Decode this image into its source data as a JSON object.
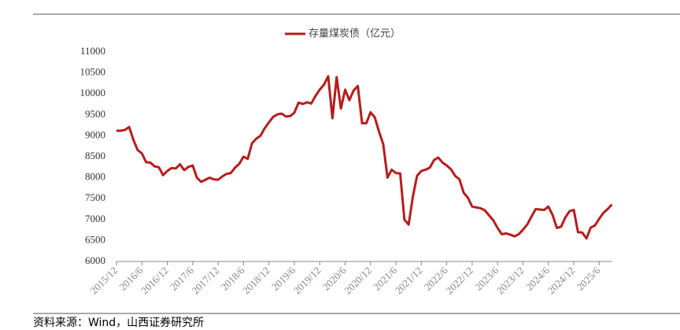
{
  "chart_data": {
    "type": "line",
    "series": [
      {
        "name": "存量煤炭债（亿元）",
        "color": "#b71c1c",
        "values": [
          9120,
          9120,
          9140,
          9210,
          8900,
          8660,
          8580,
          8370,
          8360,
          8270,
          8250,
          8060,
          8160,
          8230,
          8220,
          8320,
          8180,
          8260,
          8290,
          8000,
          7900,
          7950,
          8000,
          7960,
          7950,
          8030,
          8090,
          8110,
          8240,
          8330,
          8500,
          8450,
          8820,
          8930,
          9000,
          9180,
          9320,
          9450,
          9510,
          9530,
          9460,
          9470,
          9550,
          9790,
          9760,
          9800,
          9770,
          9950,
          10100,
          10220,
          10420,
          9420,
          10400,
          9650,
          10100,
          9850,
          10080,
          10190,
          9300,
          9300,
          9560,
          9440,
          9100,
          8800,
          8000,
          8190,
          8110,
          8100,
          7000,
          6880,
          7550,
          8050,
          8160,
          8190,
          8240,
          8420,
          8480,
          8360,
          8290,
          8200,
          8040,
          7960,
          7640,
          7520,
          7310,
          7290,
          7270,
          7220,
          7100,
          6980,
          6800,
          6650,
          6670,
          6640,
          6600,
          6650,
          6760,
          6880,
          7070,
          7250,
          7240,
          7230,
          7310,
          7110,
          6800,
          6830,
          7050,
          7200,
          7230,
          6700,
          6690,
          6550,
          6810,
          6860,
          7020,
          7160,
          7250,
          7360
        ]
      }
    ],
    "categories": [
      "2015/12",
      null,
      null,
      null,
      null,
      null,
      "2016/6",
      null,
      null,
      null,
      null,
      null,
      "2016/12",
      null,
      null,
      null,
      null,
      null,
      "2017/6",
      null,
      null,
      null,
      null,
      null,
      "2017/12",
      null,
      null,
      null,
      null,
      null,
      "2018/6",
      null,
      null,
      null,
      null,
      null,
      "2018/12",
      null,
      null,
      null,
      null,
      null,
      "2019/6",
      null,
      null,
      null,
      null,
      null,
      "2019/12",
      null,
      null,
      null,
      null,
      null,
      "2020/6",
      null,
      null,
      null,
      null,
      null,
      "2020/12",
      null,
      null,
      null,
      null,
      null,
      "2021/6",
      null,
      null,
      null,
      null,
      null,
      "2021/12",
      null,
      null,
      null,
      null,
      null,
      "2022/6",
      null,
      null,
      null,
      null,
      null,
      "2022/12",
      null,
      null,
      null,
      null,
      null,
      "2023/6",
      null,
      null,
      null,
      null,
      null,
      "2023/12",
      null,
      null,
      null,
      null,
      null,
      "2024/6",
      null,
      null,
      null,
      null,
      null,
      "2024/12",
      null,
      null,
      null,
      null,
      null,
      "2025/6",
      null,
      null,
      null
    ],
    "ylim": [
      6000,
      11000
    ],
    "yticks": [
      6000,
      6500,
      7000,
      7500,
      8000,
      8500,
      9000,
      9500,
      10000,
      10500,
      11000
    ],
    "grid": false,
    "source": "资料来源：Wind，山西证券研究所"
  }
}
